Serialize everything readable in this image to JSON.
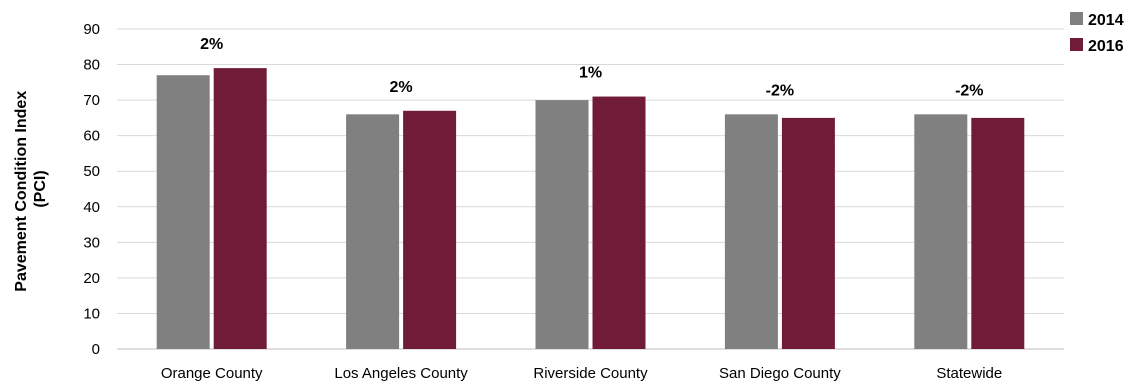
{
  "chart_data": {
    "type": "bar",
    "title": "",
    "xlabel": "",
    "ylabel": "Pavement Condition Index (PCI)",
    "ylabel_lines": [
      "Pavement Condition Index",
      "(PCI)"
    ],
    "categories": [
      "Orange County",
      "Los Angeles County",
      "Riverside County",
      "San Diego County",
      "Statewide"
    ],
    "series": [
      {
        "name": "2014",
        "color": "#808080",
        "values": [
          77,
          66,
          70,
          66,
          66
        ]
      },
      {
        "name": "2016",
        "color": "#701c38",
        "values": [
          79,
          67,
          71,
          65,
          65
        ]
      }
    ],
    "annotations": [
      "2%",
      "2%",
      "1%",
      "-2%",
      "-2%"
    ],
    "ylim": [
      0,
      90
    ],
    "yticks": [
      0,
      10,
      20,
      30,
      40,
      50,
      60,
      70,
      80,
      90
    ],
    "grid": true,
    "legend_position": "top-right"
  }
}
